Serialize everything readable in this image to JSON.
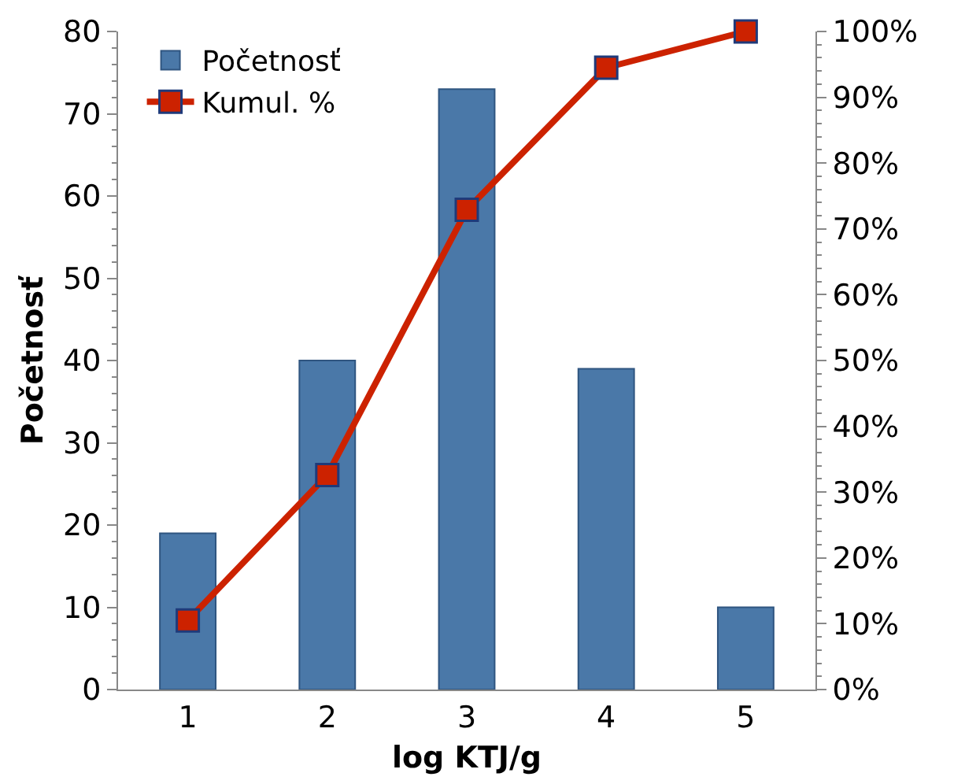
{
  "chart_data": {
    "type": "bar",
    "xlabel": "log KTJ/g",
    "ylabel": "Početnosť",
    "categories": [
      "1",
      "2",
      "3",
      "4",
      "5"
    ],
    "series": [
      {
        "name": "Početnosť",
        "color": "#4a78a8",
        "values": [
          19,
          40,
          73,
          39,
          10
        ]
      },
      {
        "name": "Kumul. %",
        "type": "line",
        "axis": "y2",
        "color": "#cc2200",
        "marker": "square",
        "line_style": "solid",
        "values": [
          10.5,
          32.6,
          72.9,
          94.5,
          100
        ]
      }
    ],
    "ylim": [
      0,
      80
    ],
    "yticks": [
      0,
      10,
      20,
      30,
      40,
      50,
      60,
      70,
      80
    ],
    "y2lim": [
      0,
      100
    ],
    "y2ticks": [
      {
        "value": 0,
        "label": "0%"
      },
      {
        "value": 10,
        "label": "10%"
      },
      {
        "value": 20,
        "label": "20%"
      },
      {
        "value": 30,
        "label": "30%"
      },
      {
        "value": 40,
        "label": "40%"
      },
      {
        "value": 50,
        "label": "50%"
      },
      {
        "value": 60,
        "label": "60%"
      },
      {
        "value": 70,
        "label": "70%"
      },
      {
        "value": 80,
        "label": "80%"
      },
      {
        "value": 90,
        "label": "90%"
      },
      {
        "value": 100,
        "label": "100%"
      }
    ],
    "grid": false,
    "legend": "top left"
  }
}
